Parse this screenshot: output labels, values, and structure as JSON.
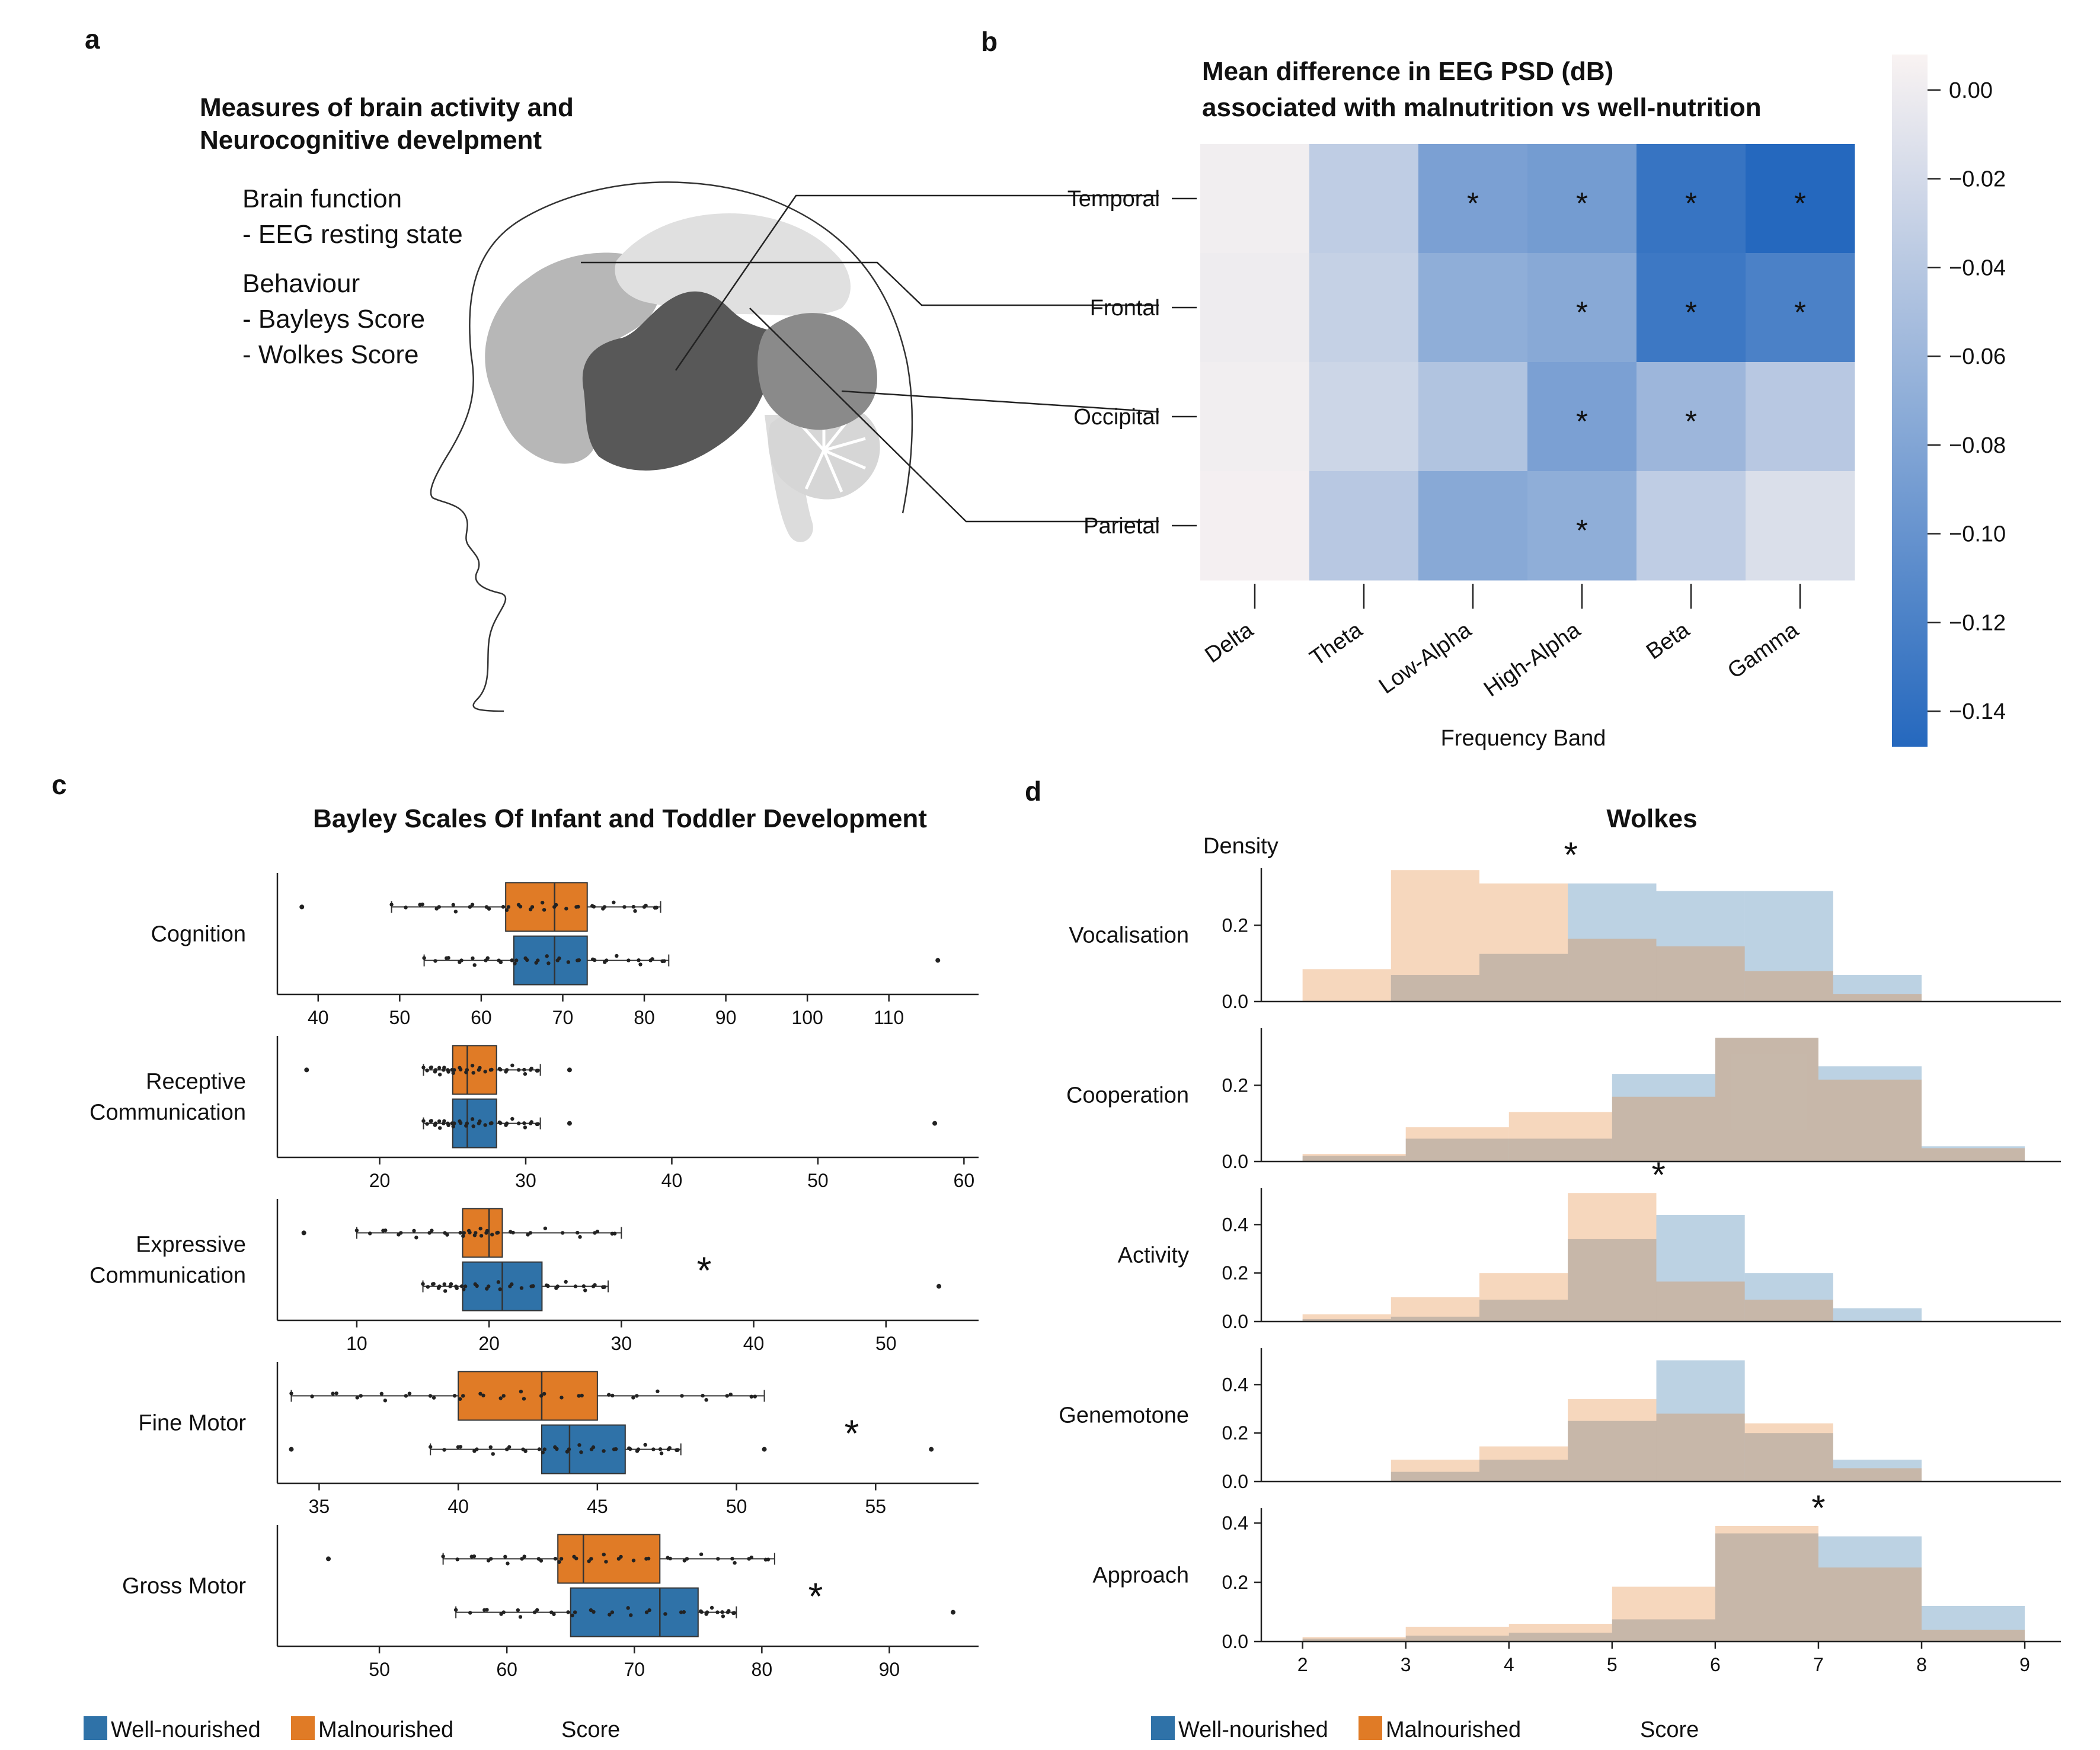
{
  "colors": {
    "well": "#2f72a8",
    "mal": "#e07b26",
    "well_light": "#bcd7eb",
    "mal_light": "#fdd9bd"
  },
  "panel_a": {
    "letter": "a",
    "title_lines": [
      "Measures of brain activity and",
      "Neurocognitive develpment"
    ],
    "text_lines": [
      "Brain function",
      "- EEG resting state",
      "Behaviour",
      "- Bayleys Score",
      "- Wolkes Score"
    ]
  },
  "panel_b": {
    "letter": "b"
  },
  "panel_c": {
    "letter": "c"
  },
  "panel_d": {
    "letter": "d"
  },
  "legend_c": {
    "well": "Well-nourished",
    "mal": "Malnourished",
    "xlabel": "Score"
  },
  "legend_d": {
    "well": "Well-nourished",
    "mal": "Malnourished",
    "xlabel": "Score"
  },
  "chart_data": [
    {
      "type": "heatmap",
      "title_lines": [
        "Mean difference in EEG PSD (dB)",
        "associated with malnutrition vs well-nutrition"
      ],
      "xlabel": "Frequency Band",
      "x_categories": [
        "Delta",
        "Theta",
        "Low-Alpha",
        "High-Alpha",
        "Beta",
        "Gamma"
      ],
      "y_categories": [
        "Temporal",
        "Frontal",
        "Occipital",
        "Parietal"
      ],
      "values": [
        [
          0.002,
          -0.035,
          -0.085,
          -0.09,
          -0.135,
          -0.148
        ],
        [
          0.0,
          -0.03,
          -0.07,
          -0.075,
          -0.13,
          -0.12
        ],
        [
          0.002,
          -0.025,
          -0.045,
          -0.085,
          -0.06,
          -0.04
        ],
        [
          0.004,
          -0.04,
          -0.075,
          -0.07,
          -0.035,
          -0.015
        ]
      ],
      "significant": [
        [
          false,
          false,
          true,
          true,
          true,
          true
        ],
        [
          false,
          false,
          false,
          true,
          true,
          true
        ],
        [
          false,
          false,
          false,
          true,
          true,
          false
        ],
        [
          false,
          false,
          false,
          true,
          false,
          false
        ]
      ],
      "colorbar_range": [
        -0.148,
        0.008
      ],
      "colorbar_ticks": [
        {
          "v": 0.0,
          "label": "0.00"
        },
        {
          "v": -0.02,
          "label": "−0.02"
        },
        {
          "v": -0.04,
          "label": "−0.04"
        },
        {
          "v": -0.06,
          "label": "−0.06"
        },
        {
          "v": -0.08,
          "label": "−0.08"
        },
        {
          "v": -0.1,
          "label": "−0.10"
        },
        {
          "v": -0.12,
          "label": "−0.12"
        },
        {
          "v": -0.14,
          "label": "−0.14"
        }
      ],
      "significance_marker": "*"
    },
    {
      "type": "box",
      "title": "Bayley Scales Of Infant and Toddler Development",
      "xlabel": "Score",
      "series_names": [
        "Well-nourished",
        "Malnourished"
      ],
      "subplots": [
        {
          "label": [
            "Cognition"
          ],
          "xlim": [
            35,
            121
          ],
          "ticks": [
            40,
            50,
            60,
            70,
            80,
            90,
            100,
            110
          ],
          "significant": false,
          "mal": {
            "whislo": 49,
            "q1": 63,
            "med": 69,
            "q3": 73,
            "whishi": 82,
            "fliers": [
              38
            ]
          },
          "well": {
            "whislo": 53,
            "q1": 64,
            "med": 69,
            "q3": 73,
            "whishi": 83,
            "fliers": [
              116
            ]
          }
        },
        {
          "label": [
            "Receptive",
            "Communication"
          ],
          "xlim": [
            13,
            61
          ],
          "ticks": [
            20,
            30,
            40,
            50,
            60
          ],
          "significant": false,
          "mal": {
            "whislo": 23,
            "q1": 25,
            "med": 26,
            "q3": 28,
            "whishi": 31,
            "fliers": [
              15,
              33
            ]
          },
          "well": {
            "whislo": 23,
            "q1": 25,
            "med": 26,
            "q3": 28,
            "whishi": 31,
            "fliers": [
              33,
              58
            ]
          }
        },
        {
          "label": [
            "Expressive",
            "Communication"
          ],
          "xlim": [
            4,
            57
          ],
          "ticks": [
            10,
            20,
            30,
            40,
            50
          ],
          "significant": true,
          "mal": {
            "whislo": 10,
            "q1": 18,
            "med": 20,
            "q3": 21,
            "whishi": 30,
            "fliers": [
              6
            ]
          },
          "well": {
            "whislo": 15,
            "q1": 18,
            "med": 21,
            "q3": 24,
            "whishi": 29,
            "fliers": [
              54
            ]
          }
        },
        {
          "label": [
            "Fine Motor"
          ],
          "xlim": [
            33.5,
            58.7
          ],
          "ticks": [
            35,
            40,
            45,
            50,
            55
          ],
          "significant": true,
          "mal": {
            "whislo": 34,
            "q1": 40,
            "med": 43,
            "q3": 45,
            "whishi": 51,
            "fliers": []
          },
          "well": {
            "whislo": 39,
            "q1": 43,
            "med": 44,
            "q3": 46,
            "whishi": 48,
            "fliers": [
              34,
              51,
              57
            ]
          }
        },
        {
          "label": [
            "Gross Motor"
          ],
          "xlim": [
            42,
            97
          ],
          "ticks": [
            50,
            60,
            70,
            80,
            90
          ],
          "significant": true,
          "mal": {
            "whislo": 55,
            "q1": 64,
            "med": 66,
            "q3": 72,
            "whishi": 81,
            "fliers": [
              46
            ]
          },
          "well": {
            "whislo": 56,
            "q1": 65,
            "med": 72,
            "q3": 75,
            "whishi": 78,
            "fliers": [
              95
            ]
          }
        }
      ]
    },
    {
      "type": "histogram",
      "title": "Wolkes",
      "ylabel": "Density",
      "xlabel": "Score",
      "series_names": [
        "Well-nourished",
        "Malnourished"
      ],
      "xlim": [
        1.6,
        9.35
      ],
      "x_ticks": [
        2,
        3,
        4,
        5,
        6,
        7,
        8,
        9
      ],
      "subplots": [
        {
          "label": "Vocalisation",
          "ylim": [
            0,
            0.35
          ],
          "y_ticks": [
            0.0,
            0.2
          ],
          "significant_at": 4.6,
          "edges": [
            2,
            2.857,
            3.714,
            4.571,
            5.429,
            6.286,
            7.143,
            8
          ],
          "well": [
            0,
            0.07,
            0.125,
            0.31,
            0.29,
            0.29,
            0.07
          ],
          "mal": [
            0.085,
            0.345,
            0.31,
            0.165,
            0.145,
            0.08,
            0.02
          ]
        },
        {
          "label": "Cooperation",
          "ylim": [
            0,
            0.35
          ],
          "y_ticks": [
            0.0,
            0.2
          ],
          "significant_at": null,
          "edges": [
            2,
            3,
            4,
            5,
            6,
            7,
            8,
            9
          ],
          "well": [
            0.015,
            0.06,
            0.06,
            0.23,
            0.325,
            0.25,
            0.04
          ],
          "mal": [
            0.02,
            0.09,
            0.13,
            0.17,
            0.325,
            0.215,
            0.035
          ]
        },
        {
          "label": "Activity",
          "ylim": [
            0,
            0.55
          ],
          "y_ticks": [
            0.0,
            0.2,
            0.4
          ],
          "significant_at": 5.45,
          "edges": [
            2,
            2.857,
            3.714,
            4.571,
            5.429,
            6.286,
            7.143,
            8
          ],
          "well": [
            0.01,
            0.02,
            0.09,
            0.34,
            0.44,
            0.2,
            0.055
          ],
          "mal": [
            0.03,
            0.1,
            0.2,
            0.53,
            0.165,
            0.09,
            0.0
          ]
        },
        {
          "label": "Genemotone",
          "ylim": [
            0,
            0.55
          ],
          "y_ticks": [
            0.0,
            0.2,
            0.4
          ],
          "significant_at": null,
          "edges": [
            2,
            2.857,
            3.714,
            4.571,
            5.429,
            6.286,
            7.143,
            8
          ],
          "well": [
            0,
            0.04,
            0.09,
            0.25,
            0.5,
            0.2,
            0.09
          ],
          "mal": [
            0,
            0.09,
            0.145,
            0.34,
            0.28,
            0.24,
            0.055
          ]
        },
        {
          "label": "Approach",
          "ylim": [
            0,
            0.45
          ],
          "y_ticks": [
            0.0,
            0.2,
            0.4
          ],
          "significant_at": 7.0,
          "edges": [
            2,
            3,
            4,
            5,
            6,
            7,
            8,
            9
          ],
          "well": [
            0.01,
            0.02,
            0.03,
            0.075,
            0.365,
            0.355,
            0.12
          ],
          "mal": [
            0.015,
            0.05,
            0.06,
            0.185,
            0.39,
            0.25,
            0.04
          ]
        }
      ]
    }
  ]
}
